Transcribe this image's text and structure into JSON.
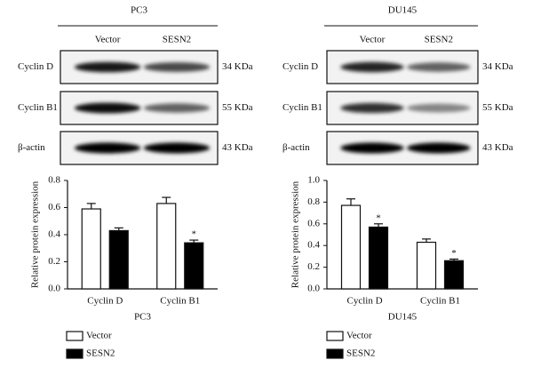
{
  "blots": [
    {
      "title": "PC3",
      "columns": [
        "Vector",
        "SESN2"
      ],
      "rows": [
        {
          "label": "Cyclin D",
          "size": "34 KDa"
        },
        {
          "label": "Cyclin B1",
          "size": "55 KDa"
        },
        {
          "label": "β-actin",
          "size": "43 KDa"
        }
      ]
    },
    {
      "title": "DU145",
      "columns": [
        "Vector",
        "SESN2"
      ],
      "rows": [
        {
          "label": "Cyclin D",
          "size": "34 KDa"
        },
        {
          "label": "Cyclin B1",
          "size": "55 KDa"
        },
        {
          "label": "β-actin",
          "size": "43 KDa"
        }
      ]
    }
  ],
  "chart_data": [
    {
      "type": "bar",
      "xlabel": "PC3",
      "ylabel": "Relative protein expression",
      "categories": [
        "Cyclin D",
        "Cyclin B1"
      ],
      "series": [
        {
          "name": "Vector",
          "color": "#ffffff",
          "values": [
            0.59,
            0.63
          ],
          "errors": [
            0.04,
            0.045
          ],
          "annotations": [
            null,
            null
          ]
        },
        {
          "name": "SESN2",
          "color": "#000000",
          "values": [
            0.43,
            0.34
          ],
          "errors": [
            0.02,
            0.02
          ],
          "annotations": [
            null,
            "*"
          ]
        }
      ],
      "ylim": [
        0,
        0.8
      ],
      "yticks": [
        {
          "value": 0,
          "label": "0.0"
        },
        0.2,
        0.4,
        0.6,
        0.8
      ]
    },
    {
      "type": "bar",
      "xlabel": "DU145",
      "ylabel": "Relative protein expression",
      "categories": [
        "Cyclin D",
        "Cyclin B1"
      ],
      "series": [
        {
          "name": "Vector",
          "color": "#ffffff",
          "values": [
            0.77,
            0.43
          ],
          "errors": [
            0.06,
            0.03
          ],
          "annotations": [
            null,
            null
          ]
        },
        {
          "name": "SESN2",
          "color": "#000000",
          "values": [
            0.57,
            0.26
          ],
          "errors": [
            0.03,
            0.015
          ],
          "annotations": [
            "*",
            "*"
          ]
        }
      ],
      "ylim": [
        0,
        1.0
      ],
      "yticks": [
        {
          "value": 0,
          "label": "0.0"
        },
        0.2,
        0.4,
        0.6,
        0.8,
        {
          "value": 1.0,
          "label": "1.0"
        }
      ]
    }
  ]
}
